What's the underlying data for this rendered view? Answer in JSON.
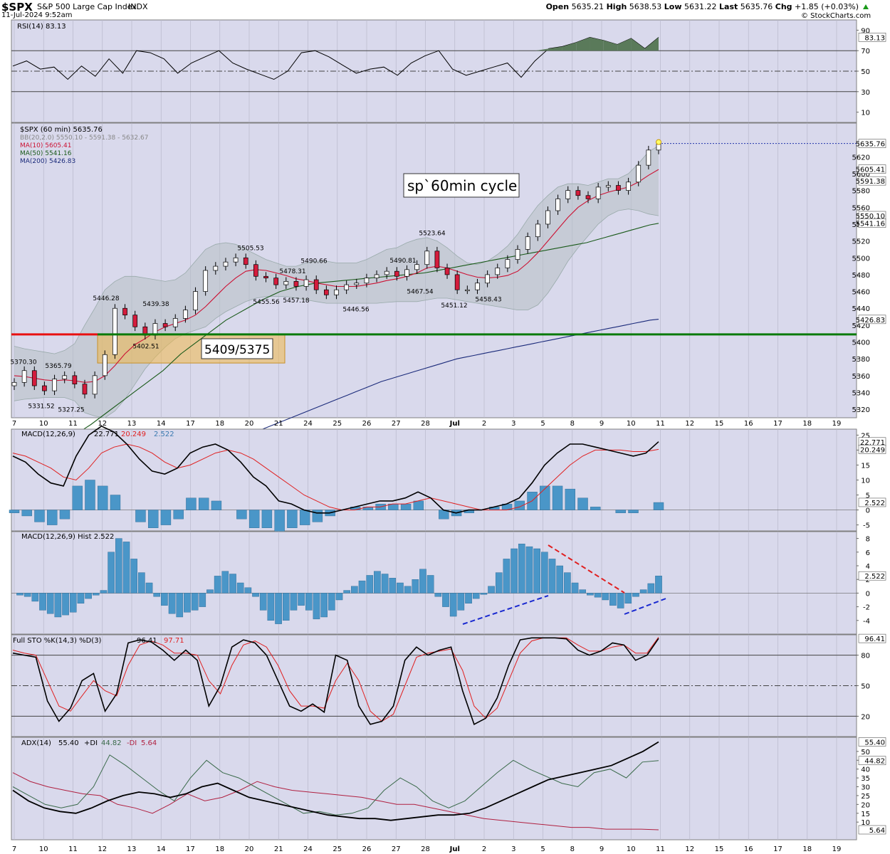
{
  "header": {
    "symbol": "$SPX",
    "name": "S&P 500 Large Cap Index",
    "exchange": "INDX",
    "date": "11-Jul-2024 9:52am",
    "brand": "© StockCharts.com",
    "quote": {
      "open_label": "Open",
      "open": "5635.21",
      "high_label": "High",
      "high": "5638.53",
      "low_label": "Low",
      "low": "5631.22",
      "last_label": "Last",
      "last": "5635.76",
      "chg_label": "Chg",
      "chg": "+1.85 (+0.03%)",
      "arrow": "up-arrow-icon"
    }
  },
  "x_axis": {
    "labels": [
      "7",
      "10",
      "11",
      "12",
      "13",
      "14",
      "17",
      "18",
      "20",
      "21",
      "24",
      "25",
      "26",
      "27",
      "28",
      "Jul",
      "2",
      "3",
      "5",
      "8",
      "9",
      "10",
      "11",
      "12",
      "15",
      "16",
      "17",
      "18",
      "19"
    ]
  },
  "colors": {
    "panel_bg": "#d9d9ec",
    "rsi_fill": "#5a7a5a",
    "red_line": "#e81010",
    "green_line": "#0a7a0a",
    "hist_blue": "#4a96c8",
    "ma10": "#cc1133",
    "ma50": "#1a5a1a",
    "ma200": "#1a2a7a",
    "zone": "#f0b84a"
  },
  "chart_data": [
    {
      "type": "line",
      "panel": "rsi",
      "legend": "RSI(14) 83.13",
      "ylim": [
        0,
        100
      ],
      "y_ticks": [
        90,
        70,
        50,
        30,
        10
      ],
      "last_value_label": "83.13",
      "series": [
        {
          "name": "RSI(14)",
          "values": [
            55,
            60,
            52,
            54,
            42,
            55,
            45,
            62,
            48,
            70,
            68,
            62,
            48,
            58,
            64,
            70,
            58,
            52,
            47,
            42,
            50,
            68,
            70,
            64,
            56,
            48,
            52,
            54,
            46,
            58,
            65,
            70,
            52,
            46,
            50,
            54,
            58,
            44,
            60,
            72,
            74,
            78,
            83,
            80,
            76,
            82,
            72,
            83
          ]
        }
      ]
    },
    {
      "type": "candlestick",
      "panel": "price",
      "legend": {
        "title": "$SPX (60 min) 5635.76",
        "bb": "BB(20,2.0) 5550.10 - 5591.38 - 5632.67",
        "ma10": "MA(10) 5605.41",
        "ma50": "MA(50) 5541.16",
        "ma200": "MA(200) 5426.83"
      },
      "ylim": [
        5310,
        5660
      ],
      "y_ticks": [
        5620,
        5600,
        5580,
        5560,
        5540,
        5520,
        5500,
        5480,
        5460,
        5440,
        5420,
        5400,
        5380,
        5360,
        5340,
        5320
      ],
      "right_labels": [
        "5635.76",
        "5605.41",
        "5591.38",
        "5550.10",
        "5541.16",
        "5426.83"
      ],
      "closes": [
        5352,
        5366,
        5348,
        5342,
        5356,
        5360,
        5350,
        5338,
        5360,
        5385,
        5440,
        5432,
        5418,
        5408,
        5422,
        5418,
        5428,
        5438,
        5460,
        5485,
        5490,
        5495,
        5500,
        5492,
        5478,
        5476,
        5468,
        5472,
        5466,
        5474,
        5462,
        5456,
        5462,
        5468,
        5470,
        5476,
        5480,
        5484,
        5478,
        5486,
        5492,
        5508,
        5488,
        5480,
        5462,
        5462,
        5470,
        5480,
        5488,
        5498,
        5510,
        5525,
        5540,
        5556,
        5570,
        5580,
        5574,
        5570,
        5584,
        5586,
        5580,
        5590,
        5610,
        5628,
        5635
      ],
      "ma10": [
        5360,
        5359,
        5357,
        5355,
        5354,
        5355,
        5354,
        5352,
        5353,
        5360,
        5372,
        5386,
        5397,
        5404,
        5412,
        5418,
        5422,
        5426,
        5432,
        5442,
        5454,
        5466,
        5476,
        5484,
        5486,
        5485,
        5482,
        5479,
        5475,
        5473,
        5470,
        5468,
        5466,
        5466,
        5466,
        5468,
        5470,
        5473,
        5475,
        5478,
        5482,
        5488,
        5490,
        5488,
        5484,
        5480,
        5477,
        5476,
        5477,
        5479,
        5484,
        5494,
        5506,
        5520,
        5534,
        5548,
        5560,
        5568,
        5574,
        5578,
        5581,
        5584,
        5590,
        5598,
        5605
      ],
      "ma50": [
        5295,
        5302,
        5310,
        5318,
        5326,
        5334,
        5342,
        5350,
        5358,
        5366,
        5376,
        5386,
        5394,
        5402,
        5410,
        5418,
        5426,
        5432,
        5438,
        5444,
        5450,
        5455,
        5460,
        5463,
        5466,
        5468,
        5470,
        5471,
        5472,
        5473,
        5474,
        5475,
        5476,
        5477,
        5478,
        5479,
        5480,
        5481,
        5482,
        5484,
        5486,
        5488,
        5490,
        5492,
        5494,
        5496,
        5498,
        5500,
        5502,
        5504,
        5506,
        5508,
        5510,
        5512,
        5514,
        5516,
        5518,
        5521,
        5524,
        5527,
        5530,
        5533,
        5536,
        5539,
        5541
      ],
      "ma200": [
        5285,
        5289,
        5293,
        5297,
        5301,
        5305,
        5309,
        5313,
        5317,
        5321,
        5325,
        5329,
        5333,
        5337,
        5341,
        5345,
        5349,
        5353,
        5356,
        5359,
        5362,
        5365,
        5368,
        5371,
        5374,
        5377,
        5380,
        5382,
        5384,
        5386,
        5388,
        5390,
        5392,
        5394,
        5396,
        5398,
        5400,
        5402,
        5404,
        5406,
        5408,
        5410,
        5412,
        5414,
        5416,
        5418,
        5420,
        5422,
        5424,
        5426,
        5427
      ],
      "bb_upper": [
        5395,
        5392,
        5390,
        5388,
        5386,
        5390,
        5398,
        5420,
        5440,
        5462,
        5472,
        5478,
        5478,
        5476,
        5474,
        5472,
        5474,
        5482,
        5496,
        5510,
        5516,
        5518,
        5516,
        5510,
        5504,
        5498,
        5494,
        5490,
        5490,
        5494,
        5496,
        5496,
        5494,
        5494,
        5494,
        5498,
        5504,
        5510,
        5512,
        5518,
        5522,
        5524,
        5520,
        5512,
        5502,
        5494,
        5492,
        5496,
        5504,
        5514,
        5528,
        5546,
        5562,
        5574,
        5584,
        5588,
        5588,
        5586,
        5590,
        5594,
        5594,
        5600,
        5612,
        5626,
        5633
      ],
      "bb_lower": [
        5330,
        5332,
        5333,
        5334,
        5334,
        5334,
        5330,
        5316,
        5312,
        5310,
        5318,
        5332,
        5350,
        5368,
        5382,
        5394,
        5404,
        5410,
        5414,
        5418,
        5428,
        5436,
        5442,
        5448,
        5452,
        5454,
        5454,
        5454,
        5452,
        5450,
        5448,
        5446,
        5446,
        5446,
        5446,
        5446,
        5446,
        5447,
        5448,
        5448,
        5448,
        5450,
        5452,
        5452,
        5450,
        5448,
        5446,
        5444,
        5442,
        5440,
        5438,
        5438,
        5444,
        5458,
        5476,
        5496,
        5512,
        5526,
        5540,
        5550,
        5556,
        5558,
        5556,
        5552,
        5550
      ],
      "annotations": [
        {
          "label": "5370.30"
        },
        {
          "label": "5365.79"
        },
        {
          "label": "5331.52"
        },
        {
          "label": "5327.25"
        },
        {
          "label": "5446.28"
        },
        {
          "label": "5439.38"
        },
        {
          "label": "5402.51"
        },
        {
          "label": "5505.53"
        },
        {
          "label": "5478.31"
        },
        {
          "label": "5490.66"
        },
        {
          "label": "5455.56"
        },
        {
          "label": "5457.18"
        },
        {
          "label": "5446.56"
        },
        {
          "label": "5490.81"
        },
        {
          "label": "5467.54"
        },
        {
          "label": "5523.64"
        },
        {
          "label": "5451.12"
        },
        {
          "label": "5458.43"
        }
      ],
      "callouts": {
        "cycle": "sp`60min cycle",
        "zone": "5409/5375"
      },
      "horizontal_levels": [
        {
          "value": 5409
        },
        {
          "value": 5375
        }
      ]
    },
    {
      "type": "line",
      "panel": "macd",
      "legend": {
        "name": "MACD(12,26,9)",
        "macd": "22.771",
        "signal": "20.249",
        "hist": "2.522"
      },
      "ylim": [
        -7,
        27
      ],
      "y_ticks": [
        25,
        20,
        15,
        10,
        5,
        0,
        -5
      ],
      "right_labels": [
        "22.771",
        "20.249",
        "2.522"
      ],
      "series": [
        {
          "name": "MACD",
          "values": [
            18,
            16,
            12,
            9,
            8,
            18,
            25,
            28,
            26,
            22,
            17,
            13,
            12,
            14,
            19,
            21,
            22,
            20,
            16,
            11,
            8,
            3,
            2,
            0,
            -1,
            -1,
            0,
            1,
            2,
            3,
            3,
            4,
            6,
            4,
            0,
            -1,
            0,
            0,
            1,
            2,
            4,
            9,
            15,
            19,
            22,
            22,
            21,
            20,
            19,
            18,
            19,
            22.8
          ]
        },
        {
          "name": "Signal",
          "values": [
            19,
            18,
            16,
            14,
            11,
            10,
            14,
            19,
            21,
            22,
            21,
            19,
            16,
            14,
            15,
            17,
            19,
            20,
            19,
            17,
            14,
            11,
            8,
            5,
            3,
            1,
            0,
            0,
            1,
            1,
            2,
            2,
            3,
            4,
            3,
            2,
            1,
            0,
            0,
            0,
            1,
            3,
            7,
            11,
            15,
            18,
            20,
            20,
            20,
            19.5,
            19.5,
            20.249
          ]
        }
      ],
      "histogram": [
        -1,
        -2,
        -4,
        -5,
        -3,
        8,
        10,
        8,
        5,
        0,
        -4,
        -6,
        -5,
        -3,
        4,
        4,
        3,
        0,
        -3,
        -6,
        -6,
        -8,
        -6,
        -5,
        -4,
        -2,
        0,
        1,
        1,
        2,
        2,
        2,
        3,
        0,
        -3,
        -2,
        -1,
        0,
        1,
        2,
        3,
        6,
        8,
        8,
        7,
        4,
        1,
        0,
        -1,
        -1,
        0,
        2.5
      ]
    },
    {
      "type": "bar",
      "panel": "macd_hist",
      "legend": "MACD(12,26,9) Hist 2.522",
      "ylim": [
        -6,
        9
      ],
      "y_ticks": [
        8,
        6,
        4,
        2,
        0,
        -2,
        -4
      ],
      "last_value_label": "2.522",
      "values": [
        -0.3,
        -0.5,
        -1.2,
        -2.5,
        -3.0,
        -3.5,
        -3.2,
        -2.8,
        -1.5,
        -0.8,
        -0.3,
        0.4,
        6,
        8,
        7.5,
        5,
        3,
        1.5,
        -0.5,
        -1.8,
        -3,
        -3.5,
        -2.8,
        -2.5,
        -2,
        0.5,
        2.5,
        3.2,
        2.8,
        1.5,
        0.8,
        -0.5,
        -2.5,
        -4,
        -4.5,
        -4,
        -2.5,
        -1.8,
        -2.5,
        -3.8,
        -3.5,
        -2.5,
        -1,
        0.4,
        1,
        1.8,
        2.6,
        3.2,
        2.8,
        2.2,
        1.5,
        1,
        2,
        3.5,
        2.6,
        -0.5,
        -2,
        -3.4,
        -2.5,
        -1.5,
        -0.8,
        -0.2,
        1,
        3,
        5,
        6.5,
        7.2,
        6.8,
        6.5,
        6,
        5,
        4,
        3,
        1.5,
        0.5,
        -0.3,
        -0.6,
        -1,
        -1.8,
        -2.2,
        -1.5,
        -0.5,
        0.5,
        1.4,
        2.522
      ],
      "trendlines": [
        {
          "color": "blue"
        },
        {
          "color": "red"
        },
        {
          "color": "blue"
        }
      ]
    },
    {
      "type": "line",
      "panel": "stochastic",
      "legend": {
        "name": "Full STO %K(14,3) %D(3)",
        "k": "96.41",
        "d": "97.71"
      },
      "ylim": [
        0,
        100
      ],
      "y_ticks": [
        80,
        50,
        20
      ],
      "last_value_label": "96.41",
      "series": [
        {
          "name": "%K",
          "values": [
            82,
            80,
            78,
            35,
            15,
            28,
            55,
            62,
            25,
            42,
            92,
            95,
            93,
            85,
            75,
            85,
            75,
            30,
            50,
            88,
            95,
            92,
            80,
            55,
            30,
            25,
            32,
            24,
            80,
            75,
            30,
            12,
            15,
            30,
            75,
            88,
            80,
            85,
            88,
            45,
            12,
            18,
            38,
            70,
            95,
            97,
            97,
            97,
            96,
            85,
            80,
            84,
            92,
            90,
            75,
            80,
            96.41
          ]
        },
        {
          "name": "%D",
          "values": [
            85,
            82,
            80,
            55,
            30,
            25,
            40,
            55,
            45,
            40,
            70,
            90,
            94,
            90,
            82,
            82,
            80,
            55,
            42,
            70,
            90,
            94,
            88,
            70,
            45,
            30,
            30,
            28,
            55,
            72,
            55,
            25,
            15,
            22,
            50,
            78,
            82,
            84,
            86,
            65,
            30,
            18,
            28,
            55,
            82,
            94,
            97,
            97,
            97,
            90,
            84,
            84,
            88,
            90,
            82,
            82,
            97.71
          ]
        }
      ]
    },
    {
      "type": "line",
      "panel": "adx",
      "legend": {
        "name": "ADX(14)",
        "adx": "55.40",
        "pdi_label": "+DI",
        "pdi": "44.82",
        "mdi_label": "-DI",
        "mdi": "5.64"
      },
      "ylim": [
        0,
        58
      ],
      "y_ticks": [
        50,
        45,
        40,
        35,
        30,
        25,
        20,
        15,
        10
      ],
      "right_labels": [
        "55.40",
        "44.82",
        "5.64"
      ],
      "series": [
        {
          "name": "ADX",
          "values": [
            28,
            22,
            18,
            16,
            15,
            18,
            22,
            25,
            27,
            26,
            24,
            26,
            30,
            32,
            28,
            24,
            22,
            20,
            18,
            16,
            14,
            13,
            12,
            12,
            11,
            12,
            13,
            14,
            14,
            15,
            18,
            22,
            26,
            30,
            34,
            36,
            38,
            40,
            42,
            46,
            50,
            55.4
          ]
        },
        {
          "name": "+DI",
          "values": [
            30,
            25,
            20,
            18,
            20,
            30,
            48,
            42,
            35,
            28,
            22,
            35,
            45,
            38,
            35,
            30,
            25,
            20,
            15,
            16,
            14,
            15,
            18,
            28,
            35,
            30,
            22,
            18,
            22,
            30,
            38,
            45,
            40,
            36,
            32,
            30,
            38,
            40,
            35,
            44,
            44.82
          ]
        },
        {
          "name": "-DI",
          "values": [
            38,
            33,
            30,
            28,
            26,
            25,
            20,
            18,
            15,
            20,
            26,
            22,
            24,
            28,
            33,
            30,
            28,
            27,
            26,
            25,
            24,
            22,
            20,
            20,
            18,
            16,
            14,
            12,
            11,
            10,
            9,
            8,
            7,
            7,
            6,
            6,
            6,
            5.64
          ]
        }
      ]
    }
  ]
}
